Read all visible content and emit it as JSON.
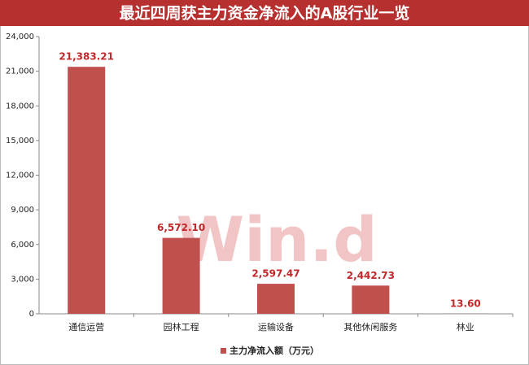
{
  "chart_data": {
    "type": "bar",
    "title": "最近四周获主力资金净流入的A股行业一览",
    "watermark": "Win.d",
    "categories": [
      "通信运营",
      "园林工程",
      "运输设备",
      "其他休闲服务",
      "林业"
    ],
    "series": [
      {
        "name": "主力净流入额（万元）",
        "color": "#c0504d",
        "values": [
          21383.21,
          6572.1,
          2597.47,
          2442.73,
          13.6
        ],
        "value_labels": [
          "21,383.21",
          "6,572.10",
          "2,597.47",
          "2,442.73",
          "13.60"
        ]
      }
    ],
    "ylim": [
      0,
      24000
    ],
    "yticks": [
      0,
      {
        "value": 3000,
        "label": "3,000"
      },
      {
        "value": 6000,
        "label": "6,000"
      },
      {
        "value": 9000,
        "label": "9,000"
      },
      {
        "value": 12000,
        "label": "12,000"
      },
      {
        "value": 15000,
        "label": "15,000"
      },
      {
        "value": 18000,
        "label": "18,000"
      },
      {
        "value": 21000,
        "label": "21,000"
      },
      {
        "value": 24000,
        "label": "24,000"
      }
    ],
    "legend": "bottom"
  }
}
